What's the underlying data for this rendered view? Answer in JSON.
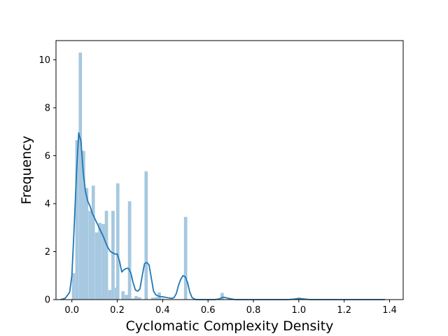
{
  "chart_data": {
    "type": "bar",
    "title": "",
    "xlabel": "Cyclomatic Complexity Density",
    "ylabel": "Frequency",
    "xlim": [
      -0.07,
      1.46
    ],
    "ylim": [
      0,
      10.8
    ],
    "xticks": [
      0.0,
      0.2,
      0.4,
      0.6,
      0.8,
      1.0,
      1.2,
      1.4
    ],
    "xtick_labels": [
      "0.0",
      "0.2",
      "0.4",
      "0.6",
      "0.8",
      "1.0",
      "1.2",
      "1.4"
    ],
    "yticks": [
      0,
      2,
      4,
      6,
      8,
      10
    ],
    "ytick_labels": [
      "0",
      "2",
      "4",
      "6",
      "8",
      "10"
    ],
    "grid": false,
    "legend": "none",
    "bar_color": "#a6c8e0",
    "line_color": "#1f77b4",
    "histogram": {
      "bin_width": 0.0145,
      "bins": [
        {
          "x0": 0.0,
          "height": 1.1
        },
        {
          "x0": 0.015,
          "height": 6.65
        },
        {
          "x0": 0.03,
          "height": 10.3
        },
        {
          "x0": 0.044,
          "height": 6.2
        },
        {
          "x0": 0.058,
          "height": 4.65
        },
        {
          "x0": 0.073,
          "height": 3.7
        },
        {
          "x0": 0.087,
          "height": 4.75
        },
        {
          "x0": 0.102,
          "height": 2.8
        },
        {
          "x0": 0.116,
          "height": 3.2
        },
        {
          "x0": 0.131,
          "height": 3.15
        },
        {
          "x0": 0.145,
          "height": 3.7
        },
        {
          "x0": 0.16,
          "height": 0.4
        },
        {
          "x0": 0.174,
          "height": 3.7
        },
        {
          "x0": 0.189,
          "height": 0.5
        },
        {
          "x0": 0.195,
          "height": 4.85
        },
        {
          "x0": 0.218,
          "height": 0.35
        },
        {
          "x0": 0.233,
          "height": 0.2
        },
        {
          "x0": 0.247,
          "height": 4.1
        },
        {
          "x0": 0.262,
          "height": 0.05
        },
        {
          "x0": 0.276,
          "height": 0.15
        },
        {
          "x0": 0.291,
          "height": 0.1
        },
        {
          "x0": 0.32,
          "height": 5.35
        },
        {
          "x0": 0.349,
          "height": 0.08
        },
        {
          "x0": 0.364,
          "height": 0.1
        },
        {
          "x0": 0.378,
          "height": 0.3
        },
        {
          "x0": 0.393,
          "height": 0.05
        },
        {
          "x0": 0.494,
          "height": 3.45
        },
        {
          "x0": 0.655,
          "height": 0.28
        },
        {
          "x0": 0.995,
          "height": 0.08
        }
      ]
    },
    "kde": {
      "x": [
        -0.05,
        -0.03,
        -0.01,
        0.0,
        0.01,
        0.02,
        0.03,
        0.04,
        0.05,
        0.06,
        0.07,
        0.08,
        0.09,
        0.1,
        0.11,
        0.12,
        0.13,
        0.14,
        0.15,
        0.16,
        0.17,
        0.18,
        0.19,
        0.2,
        0.21,
        0.22,
        0.23,
        0.24,
        0.25,
        0.26,
        0.27,
        0.28,
        0.29,
        0.3,
        0.31,
        0.32,
        0.33,
        0.34,
        0.35,
        0.36,
        0.37,
        0.38,
        0.39,
        0.4,
        0.42,
        0.44,
        0.45,
        0.46,
        0.47,
        0.48,
        0.49,
        0.5,
        0.51,
        0.52,
        0.53,
        0.54,
        0.55,
        0.57,
        0.6,
        0.63,
        0.65,
        0.66,
        0.67,
        0.69,
        0.72,
        0.8,
        0.95,
        0.98,
        1.0,
        1.02,
        1.05,
        1.2,
        1.38
      ],
      "y": [
        0.0,
        0.05,
        0.3,
        1.0,
        3.0,
        5.2,
        6.95,
        6.6,
        5.3,
        4.5,
        4.1,
        3.9,
        3.6,
        3.4,
        3.2,
        3.0,
        2.8,
        2.6,
        2.35,
        2.15,
        2.0,
        1.95,
        1.9,
        1.9,
        1.6,
        1.15,
        1.25,
        1.3,
        1.3,
        1.1,
        0.7,
        0.4,
        0.35,
        0.45,
        1.0,
        1.5,
        1.55,
        1.45,
        0.9,
        0.35,
        0.2,
        0.15,
        0.12,
        0.12,
        0.08,
        0.05,
        0.08,
        0.25,
        0.6,
        0.85,
        1.0,
        0.95,
        0.7,
        0.3,
        0.08,
        0.02,
        0.0,
        0.0,
        0.0,
        0.0,
        0.03,
        0.08,
        0.1,
        0.05,
        0.0,
        0.0,
        0.0,
        0.02,
        0.05,
        0.03,
        0.0,
        0.0,
        0.0
      ]
    }
  }
}
